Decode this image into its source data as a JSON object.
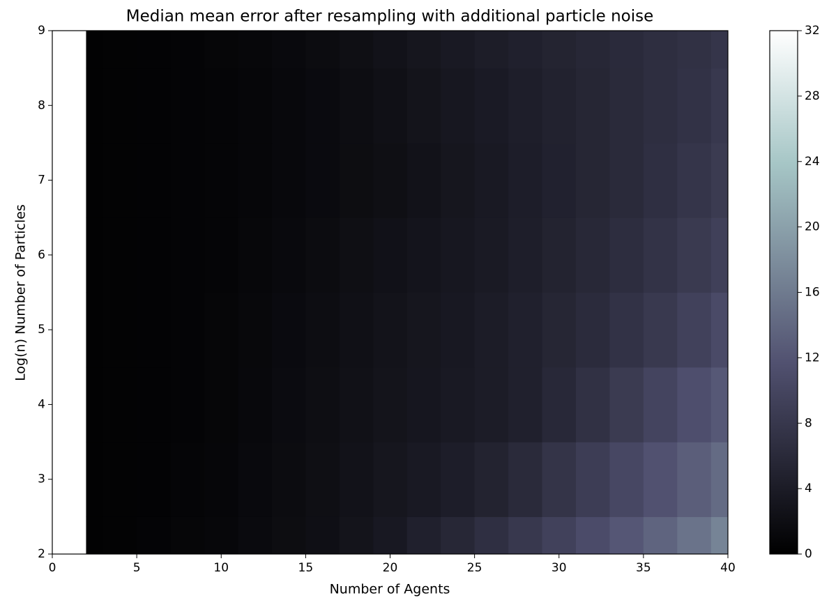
{
  "chart_data": {
    "type": "contourf",
    "title": "Median mean error after resampling with additional particle noise",
    "x_label": "Number of Agents",
    "y_label": "Log(n) Number of Particles",
    "colormap": "bone",
    "x": [
      2,
      4,
      6,
      8,
      10,
      12,
      14,
      16,
      18,
      20,
      22,
      24,
      26,
      28,
      30,
      32,
      34,
      36,
      38,
      40
    ],
    "y": [
      2,
      3,
      4,
      5,
      6,
      7,
      8,
      9
    ],
    "z": [
      [
        0.3,
        0.4,
        0.6,
        0.8,
        1.0,
        1.4,
        1.8,
        2.2,
        2.8,
        3.5,
        4.6,
        5.6,
        6.8,
        8.0,
        9.4,
        10.8,
        12.2,
        13.6,
        15.2,
        17.0
      ],
      [
        0.3,
        0.4,
        0.5,
        0.7,
        0.9,
        1.3,
        1.7,
        2.1,
        2.6,
        3.1,
        3.6,
        4.2,
        5.0,
        6.0,
        7.4,
        8.8,
        10.2,
        11.6,
        13.0,
        14.4
      ],
      [
        0.3,
        0.4,
        0.5,
        0.6,
        0.8,
        1.2,
        1.6,
        2.0,
        2.4,
        2.8,
        3.2,
        3.6,
        4.0,
        4.6,
        5.8,
        7.0,
        8.4,
        9.8,
        11.2,
        12.4
      ],
      [
        0.3,
        0.4,
        0.5,
        0.6,
        0.8,
        1.1,
        1.5,
        1.9,
        2.3,
        2.7,
        3.1,
        3.5,
        4.0,
        4.6,
        5.4,
        6.2,
        7.2,
        8.2,
        9.4,
        10.6
      ],
      [
        0.3,
        0.4,
        0.5,
        0.6,
        0.7,
        1.0,
        1.3,
        1.7,
        2.1,
        2.5,
        2.9,
        3.3,
        3.7,
        4.3,
        5.0,
        5.7,
        6.5,
        7.3,
        8.3,
        9.2
      ],
      [
        0.3,
        0.4,
        0.5,
        0.6,
        0.7,
        0.9,
        1.2,
        1.5,
        1.8,
        2.1,
        2.6,
        3.1,
        3.6,
        4.2,
        4.8,
        5.4,
        6.0,
        6.8,
        7.6,
        8.4
      ],
      [
        0.3,
        0.4,
        0.5,
        0.6,
        0.7,
        0.9,
        1.2,
        1.5,
        1.9,
        2.3,
        2.8,
        3.3,
        3.8,
        4.3,
        4.9,
        5.4,
        6.0,
        6.6,
        7.2,
        8.0
      ],
      [
        0.3,
        0.4,
        0.5,
        0.6,
        0.8,
        1.0,
        1.3,
        1.7,
        2.1,
        2.6,
        3.1,
        3.6,
        4.1,
        4.6,
        5.1,
        5.6,
        6.1,
        6.6,
        7.0,
        7.6
      ]
    ],
    "xlim": [
      0,
      40
    ],
    "xticks": [
      0,
      5,
      10,
      15,
      20,
      25,
      30,
      35,
      40
    ],
    "ylim": [
      2,
      9
    ],
    "yticks": [
      2,
      3,
      4,
      5,
      6,
      7,
      8,
      9
    ],
    "colorbar_lim": [
      0,
      32
    ],
    "colorbar_ticks": [
      0,
      4,
      8,
      12,
      16,
      20,
      24,
      28,
      32
    ]
  }
}
